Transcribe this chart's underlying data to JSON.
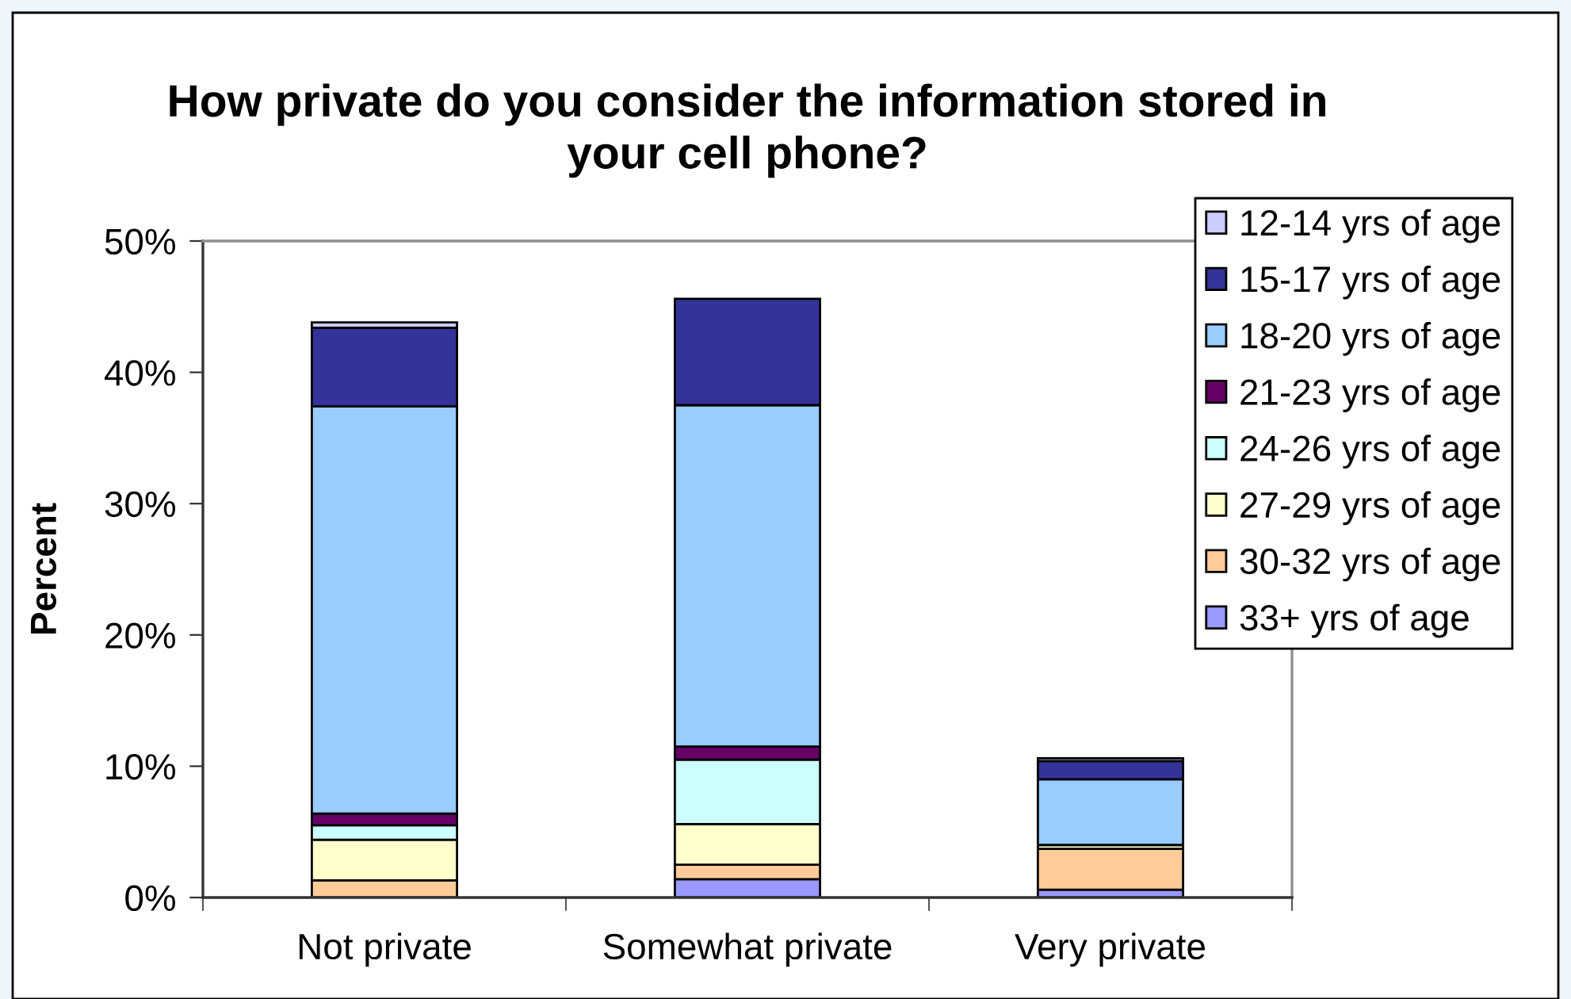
{
  "chart_data": {
    "type": "bar",
    "stacked": true,
    "title": "How private do you consider the information stored in\nyour cell phone?",
    "ylabel": "Percent",
    "categories": [
      "Not private",
      "Somewhat private",
      "Very private"
    ],
    "series": [
      {
        "name": "33+ yrs of age",
        "color": "#9999ff",
        "values": [
          0,
          1.4,
          0.6
        ]
      },
      {
        "name": "30-32 yrs of age",
        "color": "#ffcc99",
        "values": [
          1.3,
          1.1,
          3.1
        ]
      },
      {
        "name": "27-29 yrs of age",
        "color": "#ffffcc",
        "values": [
          3.1,
          3.1,
          0.3
        ]
      },
      {
        "name": "24-26 yrs of age",
        "color": "#ccffff",
        "values": [
          1.1,
          4.9,
          0
        ]
      },
      {
        "name": "21-23 yrs of age",
        "color": "#660066",
        "values": [
          0.9,
          1.0,
          0
        ]
      },
      {
        "name": "18-20 yrs of age",
        "color": "#99ccff",
        "values": [
          31.0,
          26.0,
          5.0
        ]
      },
      {
        "name": "15-17 yrs of age",
        "color": "#333399",
        "values": [
          6.0,
          8.1,
          1.4
        ]
      },
      {
        "name": "12-14 yrs of age",
        "color": "#ccccff",
        "values": [
          0.4,
          0,
          0.2
        ]
      }
    ],
    "ylim": [
      0,
      50
    ],
    "yticks": [
      {
        "value": 0,
        "label": "0%"
      },
      {
        "value": 10,
        "label": "10%"
      },
      {
        "value": 20,
        "label": "20%"
      },
      {
        "value": 30,
        "label": "30%"
      },
      {
        "value": 40,
        "label": "40%"
      },
      {
        "value": 50,
        "label": "50%"
      }
    ],
    "legend": "right"
  }
}
